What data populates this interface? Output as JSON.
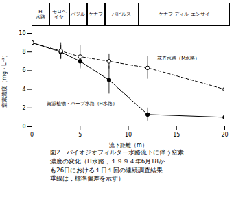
{
  "chart_data": {
    "type": "line",
    "header": [
      "H\n水路",
      "モロヘ\nイヤ",
      "バジル",
      "ケナフ",
      "パピルス",
      "ケナフ ディル エンサイ"
    ],
    "xlabel": "流下距離（m）",
    "ylabel": "窒素濃度（mg・L⁻¹）",
    "x": [
      0,
      3,
      5,
      8,
      12,
      20
    ],
    "series": [
      {
        "name": "資源植物・ハーブ水路（H水路）",
        "color": "black",
        "marker": "circle",
        "line_style": "solid",
        "values": [
          9.0,
          8.0,
          7.0,
          5.0,
          1.3,
          1.0
        ],
        "yerr": [
          0.5,
          0.7,
          0.8,
          1.5,
          0.7,
          0.3
        ]
      },
      {
        "name": "花卉水路（M水路）",
        "color": "black",
        "marker": "open_circle",
        "line_style": "dashed",
        "values": [
          9.0,
          8.1,
          7.5,
          7.0,
          6.3,
          4.0
        ],
        "yerr": [
          0.5,
          0.9,
          1.2,
          0.8,
          1.2,
          0.9
        ]
      }
    ],
    "annotations": [
      {
        "text": "花卉水路（M水路）",
        "x": 13.0,
        "y": 7.35
      },
      {
        "text": "資源植物・ハーブ水路（H水路）",
        "x": 1.5,
        "y": 2.5
      }
    ],
    "xlim": [
      0,
      20
    ],
    "ylim": [
      0,
      10
    ],
    "xticks": [
      0,
      5,
      10,
      15,
      20
    ],
    "yticks": [
      0,
      2,
      4,
      6,
      8,
      10
    ],
    "grid": false,
    "caption": [
      "図2　バイオジオフィルター水路流下に伴う窒素",
      "濃度の変化（H水路，１９９４年6月18か",
      "も26日における１日１回の連続調査結果．",
      "垂線は，標準偏差を示す）"
    ]
  }
}
